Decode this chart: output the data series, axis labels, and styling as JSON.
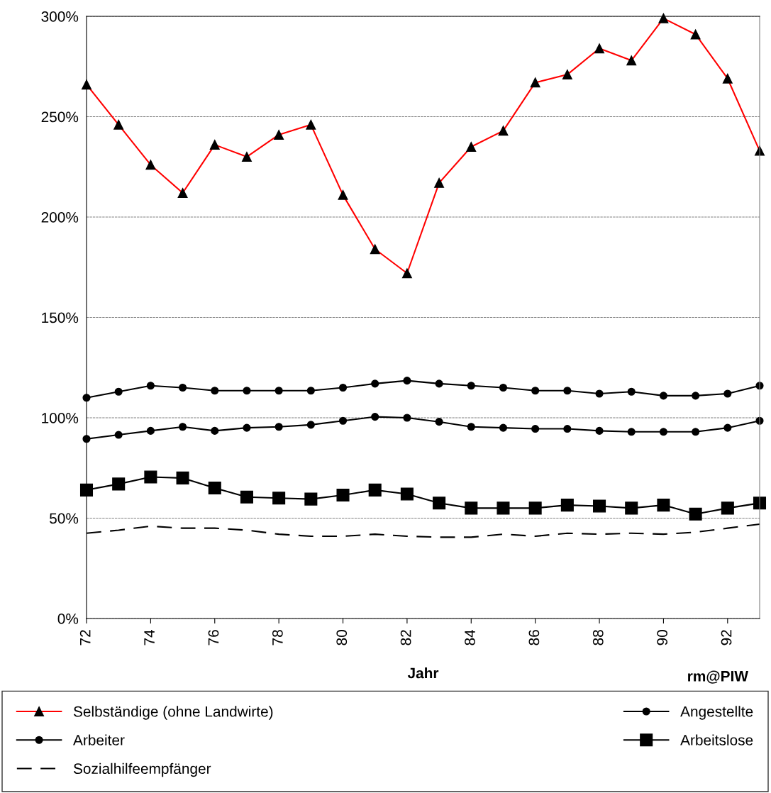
{
  "chart_data": {
    "type": "line",
    "xlabel": "Jahr",
    "x": [
      72,
      73,
      74,
      75,
      76,
      77,
      78,
      79,
      80,
      81,
      82,
      83,
      84,
      85,
      86,
      87,
      88,
      89,
      90,
      91,
      92,
      93
    ],
    "series": [
      {
        "name": "Selbständige (ohne Landwirte)",
        "color": "#ff0000",
        "marker": "triangle",
        "values": [
          266,
          246,
          226,
          212,
          236,
          230,
          241,
          246,
          211,
          184,
          172,
          217,
          235,
          243,
          267,
          271,
          284,
          278,
          299,
          291,
          269,
          233
        ]
      },
      {
        "name": "Angestellte",
        "color": "#000000",
        "marker": "circle",
        "values": [
          110,
          113,
          116,
          115,
          113.5,
          113.5,
          113.5,
          113.5,
          115,
          117,
          118.5,
          117,
          116,
          115,
          113.5,
          113.5,
          112,
          113,
          111,
          111,
          112,
          116
        ]
      },
      {
        "name": "Arbeiter",
        "color": "#000000",
        "marker": "circle",
        "values": [
          89.5,
          91.5,
          93.5,
          95.5,
          93.5,
          95,
          95.5,
          96.5,
          98.5,
          100.5,
          100,
          98,
          95.5,
          95,
          94.5,
          94.5,
          93.5,
          93,
          93,
          93,
          95,
          98.5
        ]
      },
      {
        "name": "Arbeitslose",
        "color": "#000000",
        "marker": "square",
        "values": [
          64,
          67,
          70.5,
          70,
          65,
          60.5,
          60,
          59.5,
          61.5,
          64,
          62,
          57.5,
          55,
          55,
          55,
          56.5,
          56,
          55,
          56.5,
          52,
          55,
          57.5
        ]
      },
      {
        "name": "Sozialhilfeempfänger",
        "color": "#000000",
        "marker": "none",
        "line_style": "dashed",
        "values": [
          42.5,
          44,
          46,
          45,
          45,
          44,
          42,
          41,
          41,
          42,
          41,
          40.5,
          40.5,
          42,
          41,
          42.5,
          42,
          42.5,
          42,
          43,
          45,
          47
        ]
      }
    ],
    "xlim": [
      72,
      93
    ],
    "xticks": [
      72,
      74,
      76,
      78,
      80,
      82,
      84,
      86,
      88,
      90,
      92
    ],
    "ylim": [
      0,
      300
    ],
    "yticks": [
      {
        "value": 0,
        "label": "0%"
      },
      {
        "value": 50,
        "label": "50%"
      },
      {
        "value": 100,
        "label": "100%"
      },
      {
        "value": 150,
        "label": "150%"
      },
      {
        "value": 200,
        "label": "200%"
      },
      {
        "value": 250,
        "label": "250%"
      },
      {
        "value": 300,
        "label": "300%"
      }
    ],
    "grid": "y",
    "legend": "bottom",
    "annotations": [
      "rm@PIW"
    ]
  }
}
